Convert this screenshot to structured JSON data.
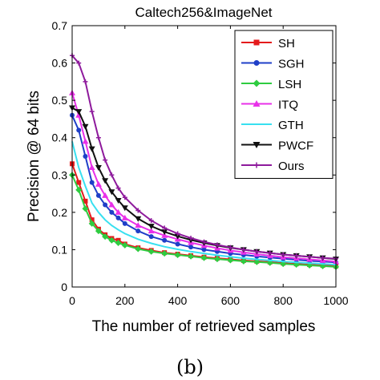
{
  "chart_data": {
    "type": "line",
    "title": "Caltech256&ImageNet",
    "xlabel": "The number of retrieved samples",
    "ylabel": "Precision @ 64 bits",
    "xlim": [
      0,
      1000
    ],
    "ylim": [
      0,
      0.7
    ],
    "xticks": [
      "0",
      "200",
      "400",
      "600",
      "800",
      "1000"
    ],
    "yticks": [
      "0",
      "0.1",
      "0.2",
      "0.3",
      "0.4",
      "0.5",
      "0.6",
      "0.7"
    ],
    "grid": false,
    "legend_position": "top-right",
    "caption": "(b)",
    "x": [
      0,
      25,
      50,
      75,
      100,
      125,
      150,
      175,
      200,
      250,
      300,
      350,
      400,
      450,
      500,
      550,
      600,
      650,
      700,
      750,
      800,
      850,
      900,
      950,
      1000
    ],
    "series": [
      {
        "name": "SH",
        "color": "#e41a1c",
        "marker": "square",
        "values": [
          0.33,
          0.28,
          0.23,
          0.18,
          0.155,
          0.14,
          0.13,
          0.125,
          0.115,
          0.105,
          0.098,
          0.092,
          0.088,
          0.084,
          0.08,
          0.077,
          0.074,
          0.071,
          0.069,
          0.067,
          0.064,
          0.062,
          0.06,
          0.058,
          0.056
        ]
      },
      {
        "name": "SGH",
        "color": "#1f3fc8",
        "marker": "circle",
        "values": [
          0.46,
          0.42,
          0.35,
          0.28,
          0.245,
          0.22,
          0.2,
          0.185,
          0.17,
          0.15,
          0.135,
          0.125,
          0.115,
          0.107,
          0.1,
          0.095,
          0.09,
          0.086,
          0.082,
          0.079,
          0.076,
          0.073,
          0.07,
          0.068,
          0.066
        ]
      },
      {
        "name": "LSH",
        "color": "#2ecc40",
        "marker": "diamond",
        "values": [
          0.3,
          0.26,
          0.21,
          0.17,
          0.15,
          0.135,
          0.125,
          0.118,
          0.112,
          0.102,
          0.095,
          0.09,
          0.086,
          0.082,
          0.078,
          0.075,
          0.072,
          0.069,
          0.067,
          0.065,
          0.062,
          0.06,
          0.058,
          0.056,
          0.054
        ]
      },
      {
        "name": "ITQ",
        "color": "#e830e8",
        "marker": "triangle-up",
        "values": [
          0.52,
          0.46,
          0.39,
          0.32,
          0.275,
          0.245,
          0.22,
          0.2,
          0.185,
          0.165,
          0.15,
          0.138,
          0.128,
          0.119,
          0.111,
          0.104,
          0.098,
          0.093,
          0.088,
          0.084,
          0.08,
          0.077,
          0.074,
          0.071,
          0.068
        ]
      },
      {
        "name": "GTH",
        "color": "#38e0f0",
        "marker": "none",
        "values": [
          0.39,
          0.32,
          0.27,
          0.225,
          0.2,
          0.18,
          0.165,
          0.153,
          0.143,
          0.128,
          0.117,
          0.108,
          0.101,
          0.095,
          0.09,
          0.085,
          0.081,
          0.077,
          0.074,
          0.071,
          0.068,
          0.066,
          0.064,
          0.062,
          0.06
        ]
      },
      {
        "name": "PWCF",
        "color": "#111111",
        "marker": "triangle-down",
        "values": [
          0.48,
          0.47,
          0.43,
          0.37,
          0.32,
          0.285,
          0.255,
          0.232,
          0.212,
          0.183,
          0.163,
          0.148,
          0.136,
          0.126,
          0.118,
          0.111,
          0.105,
          0.1,
          0.095,
          0.091,
          0.087,
          0.084,
          0.081,
          0.078,
          0.075
        ]
      },
      {
        "name": "Ours",
        "color": "#8e1a9c",
        "marker": "cross",
        "values": [
          0.62,
          0.6,
          0.55,
          0.47,
          0.4,
          0.34,
          0.3,
          0.265,
          0.24,
          0.205,
          0.178,
          0.158,
          0.143,
          0.131,
          0.121,
          0.113,
          0.106,
          0.1,
          0.095,
          0.091,
          0.087,
          0.084,
          0.081,
          0.078,
          0.076
        ]
      }
    ]
  }
}
